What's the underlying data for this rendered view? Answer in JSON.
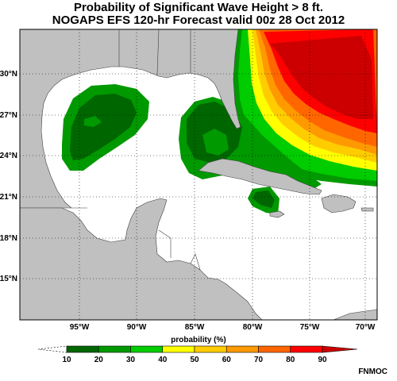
{
  "title": {
    "line1": "Probability of Significant Wave Height > 8 ft.",
    "line2": "NOGAPS EFS 120-hr Forecast valid 00z 28 Oct 2012"
  },
  "map": {
    "lat_labels": [
      "30°N",
      "27°N",
      "24°N",
      "21°N",
      "18°N",
      "15°N"
    ],
    "lon_labels": [
      "95°W",
      "90°W",
      "85°W",
      "80°W",
      "75°W",
      "70°W"
    ],
    "colors": {
      "ocean": "#ffffff",
      "land": "#c0c0c0",
      "border": "#333333"
    }
  },
  "legend": {
    "label": "probability (%)",
    "ticks": [
      "10",
      "20",
      "30",
      "40",
      "50",
      "60",
      "70",
      "80",
      "90"
    ],
    "colors": [
      "#006600",
      "#009900",
      "#00cc00",
      "#ffff00",
      "#ffcc00",
      "#ff9900",
      "#ff6600",
      "#ff0000",
      "#cc0000"
    ]
  },
  "credit": "FNMOC"
}
